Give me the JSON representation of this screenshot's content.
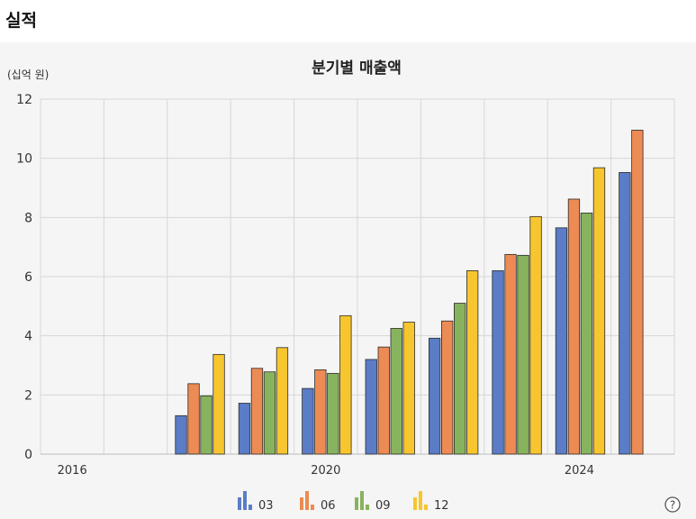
{
  "section": {
    "title": "실적"
  },
  "chart_data": {
    "type": "bar",
    "title": "분기별 매출액",
    "unit_label": "(십억 원)",
    "ylim": [
      0,
      12
    ],
    "yticks": [
      0,
      2,
      4,
      6,
      8,
      10,
      12
    ],
    "grid": true,
    "legend_position": "bottom",
    "x_labels": [
      {
        "label": "2016",
        "slot": 0
      },
      {
        "label": "2020",
        "slot": 4
      },
      {
        "label": "2024",
        "slot": 8
      }
    ],
    "categories": [
      "2016",
      "2017",
      "2018",
      "2019",
      "2020",
      "2021",
      "2022",
      "2023",
      "2024",
      "2025"
    ],
    "series": [
      {
        "name": "03",
        "color": "#5b7cc6",
        "values": [
          null,
          null,
          1.3,
          1.72,
          2.22,
          3.2,
          3.92,
          6.2,
          7.65,
          9.52
        ]
      },
      {
        "name": "06",
        "color": "#ec8b53",
        "values": [
          null,
          null,
          2.38,
          2.9,
          2.85,
          3.62,
          4.5,
          6.75,
          8.62,
          10.95
        ]
      },
      {
        "name": "09",
        "color": "#88b35e",
        "values": [
          null,
          null,
          1.97,
          2.78,
          2.73,
          4.25,
          5.1,
          6.72,
          8.15,
          null
        ]
      },
      {
        "name": "12",
        "color": "#f7c52e",
        "values": [
          null,
          null,
          3.37,
          3.6,
          4.68,
          4.46,
          6.2,
          8.03,
          9.68,
          null
        ]
      }
    ]
  },
  "help": {
    "icon": "help-icon",
    "glyph": "?"
  }
}
